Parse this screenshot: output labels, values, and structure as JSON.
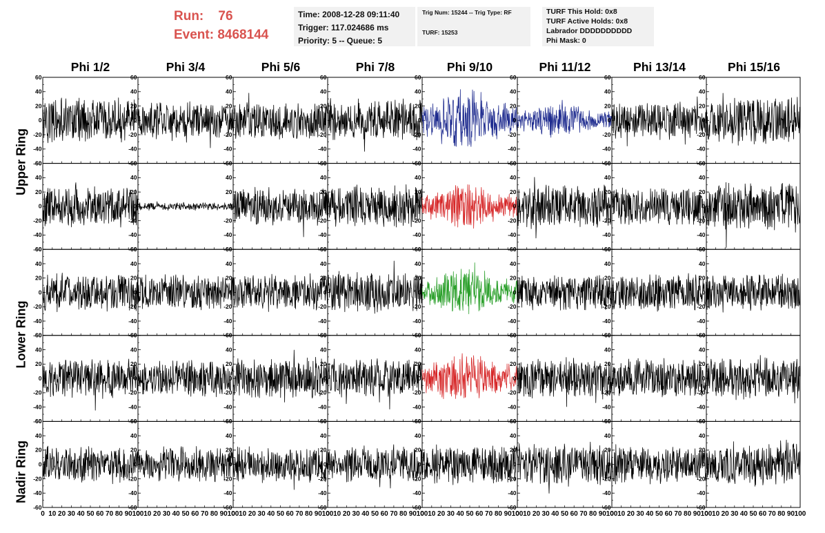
{
  "header": {
    "run_label": "Run:",
    "run_value": "76",
    "event_label": "Event:",
    "event_value": "8468144",
    "time_line": "Time: 2008-12-28 09:11:40",
    "trigger_line": "Trigger: 117.024686 ms",
    "priority_line": "Priority: 5 -- Queue: 5",
    "trig_line": "Trig Num: 15244 -- Trig Type: RF",
    "turf_line": "TURF: 15253",
    "turf_hold": "TURF This Hold: 0x8",
    "turf_active": "TURF Active Holds: 0x8",
    "labrador": "Labrador DDDDDDDDDD",
    "phi_mask": "Phi Mask: 0"
  },
  "colors": {
    "run_text": "#d9534f",
    "info_bg": "#f1f1f1",
    "trace_default": "#000000",
    "trace_blue": "#1f2c8f",
    "trace_red": "#d62728",
    "trace_green": "#2ca02c"
  },
  "chart_data": {
    "type": "line",
    "title": "",
    "columns": [
      "Phi 1/2",
      "Phi 3/4",
      "Phi 5/6",
      "Phi 7/8",
      "Phi 9/10",
      "Phi 11/12",
      "Phi 13/14",
      "Phi 15/16"
    ],
    "ring_labels": [
      "Upper Ring",
      "Lower Ring",
      "Nadir Ring"
    ],
    "rows": 5,
    "xlim": [
      0,
      100
    ],
    "ylim": [
      -60,
      60
    ],
    "x_ticks": [
      0,
      10,
      20,
      30,
      40,
      50,
      60,
      70,
      80,
      90,
      100
    ],
    "x_tick_labels": [
      "0",
      "10",
      "20",
      "30",
      "40",
      "50",
      "60",
      "70",
      "80",
      "90",
      "100"
    ],
    "y_ticks": [
      -60,
      -40,
      -20,
      0,
      20,
      40,
      60
    ],
    "y_tick_labels": [
      "-60",
      "-40",
      "-20",
      "0",
      "20",
      "40",
      "60"
    ],
    "grid": false,
    "amplitude_note_rows": [
      [
        35,
        28,
        30,
        34,
        40,
        22,
        30,
        38
      ],
      [
        33,
        6,
        30,
        34,
        28,
        34,
        30,
        38
      ],
      [
        30,
        28,
        28,
        32,
        32,
        30,
        30,
        30
      ],
      [
        30,
        30,
        32,
        30,
        34,
        32,
        30,
        33
      ],
      [
        30,
        28,
        28,
        28,
        30,
        34,
        30,
        33
      ]
    ],
    "trace_colors": [
      [
        "default",
        "default",
        "default",
        "default",
        "blue",
        "blue",
        "default",
        "default"
      ],
      [
        "default",
        "default",
        "default",
        "default",
        "red",
        "default",
        "default",
        "default"
      ],
      [
        "default",
        "default",
        "default",
        "default",
        "green",
        "default",
        "default",
        "default"
      ],
      [
        "default",
        "default",
        "default",
        "default",
        "red",
        "default",
        "default",
        "default"
      ],
      [
        "default",
        "default",
        "default",
        "default",
        "default",
        "default",
        "default",
        "default"
      ]
    ]
  }
}
